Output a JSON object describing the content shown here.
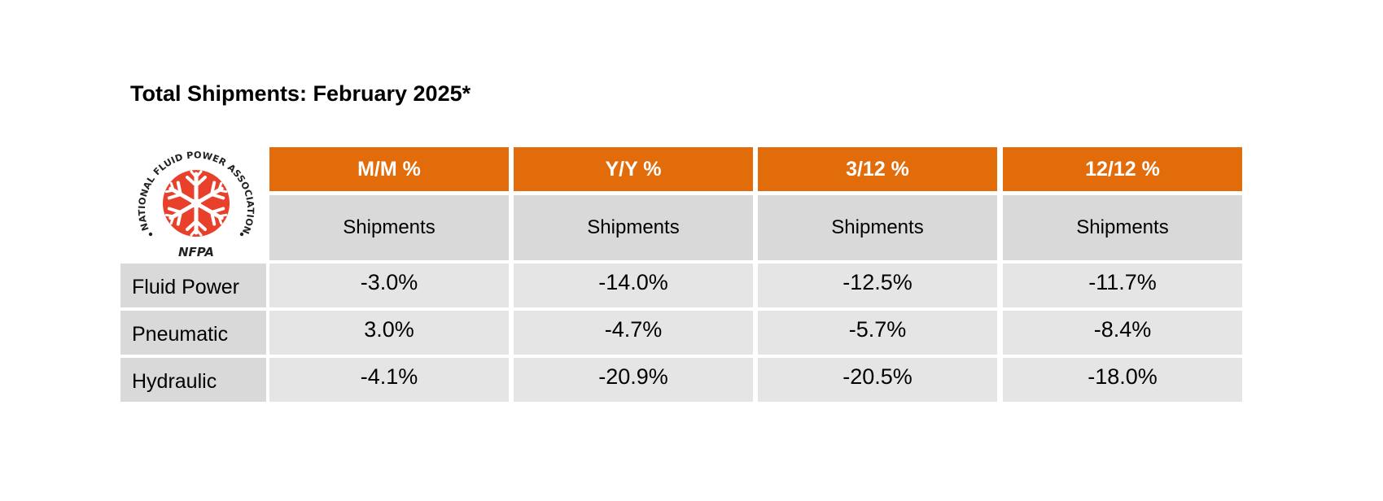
{
  "title": "Total Shipments: February 2025*",
  "logo": {
    "ring_text": "NATIONAL FLUID POWER ASSOCIATION",
    "abbr": "NFPA",
    "color": "#e8402a"
  },
  "colors": {
    "header_bg": "#e36c0a",
    "subheader_bg": "#d9d9d9",
    "cell_bg": "#e5e5e5"
  },
  "chart_data": {
    "type": "table",
    "title": "Total Shipments: February 2025*",
    "columns": [
      {
        "header": "M/M %",
        "subheader": "Shipments"
      },
      {
        "header": "Y/Y %",
        "subheader": "Shipments"
      },
      {
        "header": "3/12 %",
        "subheader": "Shipments"
      },
      {
        "header": "12/12 %",
        "subheader": "Shipments"
      }
    ],
    "rows": [
      {
        "label": "Fluid Power",
        "values": [
          "-3.0%",
          "-14.0%",
          "-12.5%",
          "-11.7%"
        ]
      },
      {
        "label": "Pneumatic",
        "values": [
          "3.0%",
          "-4.7%",
          "-5.7%",
          "-8.4%"
        ]
      },
      {
        "label": "Hydraulic",
        "values": [
          "-4.1%",
          "-20.9%",
          "-20.5%",
          "-18.0%"
        ]
      }
    ]
  }
}
